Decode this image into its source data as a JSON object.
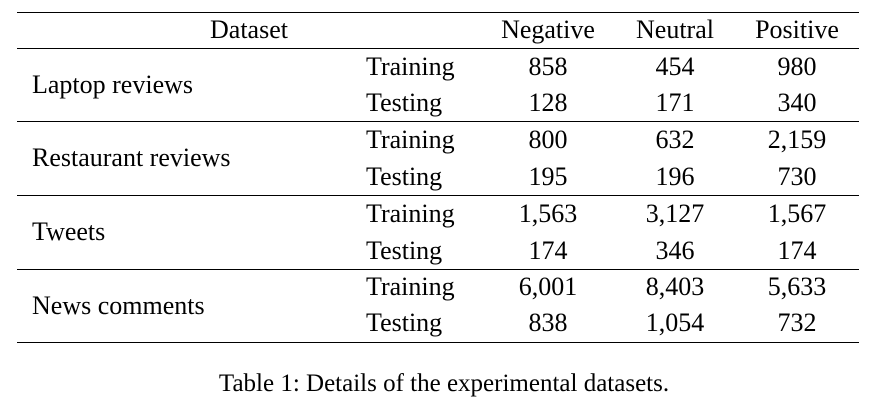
{
  "table": {
    "headers": {
      "dataset": "Dataset",
      "negative": "Negative",
      "neutral": "Neutral",
      "positive": "Positive"
    },
    "groups": [
      {
        "name": "Laptop reviews",
        "rows": [
          {
            "split": "Training",
            "negative": "858",
            "neutral": "454",
            "positive": "980"
          },
          {
            "split": "Testing",
            "negative": "128",
            "neutral": "171",
            "positive": "340"
          }
        ]
      },
      {
        "name": "Restaurant reviews",
        "rows": [
          {
            "split": "Training",
            "negative": "800",
            "neutral": "632",
            "positive": "2,159"
          },
          {
            "split": "Testing",
            "negative": "195",
            "neutral": "196",
            "positive": "730"
          }
        ]
      },
      {
        "name": "Tweets",
        "rows": [
          {
            "split": "Training",
            "negative": "1,563",
            "neutral": "3,127",
            "positive": "1,567"
          },
          {
            "split": "Testing",
            "negative": "174",
            "neutral": "346",
            "positive": "174"
          }
        ]
      },
      {
        "name": "News comments",
        "rows": [
          {
            "split": "Training",
            "negative": "6,001",
            "neutral": "8,403",
            "positive": "5,633"
          },
          {
            "split": "Testing",
            "negative": "838",
            "neutral": "1,054",
            "positive": "732"
          }
        ]
      }
    ]
  },
  "caption": "Table 1: Details of the experimental datasets."
}
